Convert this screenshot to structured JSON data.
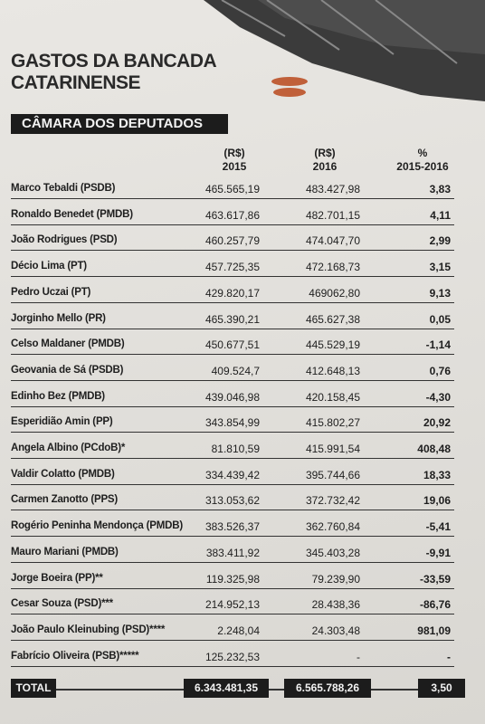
{
  "header": {
    "title": [
      "GASTOS DA BANCADA",
      "CATARINENSE"
    ],
    "section": "CÂMARA DOS DEPUTADOS"
  },
  "table": {
    "columns": [
      [
        "(R$)",
        "2015"
      ],
      [
        "(R$)",
        "2016"
      ],
      [
        "%",
        "2015-2016"
      ]
    ],
    "rows": [
      [
        "Marco Tebaldi (PSDB)",
        "465.565,19",
        "483.427,98",
        "3,83"
      ],
      [
        "Ronaldo Benedet (PMDB)",
        "463.617,86",
        "482.701,15",
        "4,11"
      ],
      [
        "João Rodrigues (PSD)",
        "460.257,79",
        "474.047,70",
        "2,99"
      ],
      [
        "Décio Lima (PT)",
        "457.725,35",
        "472.168,73",
        "3,15"
      ],
      [
        "Pedro Uczai (PT)",
        "429.820,17",
        "469062,80",
        "9,13"
      ],
      [
        "Jorginho Mello (PR)",
        "465.390,21",
        "465.627,38",
        "0,05"
      ],
      [
        "Celso Maldaner (PMDB)",
        "450.677,51",
        "445.529,19",
        "-1,14"
      ],
      [
        "Geovania de Sá (PSDB)",
        "409.524,7",
        "412.648,13",
        "0,76"
      ],
      [
        "Edinho Bez (PMDB)",
        "439.046,98",
        "420.158,45",
        "-4,30"
      ],
      [
        "Esperidião Amin (PP)",
        "343.854,99",
        "415.802,27",
        "20,92"
      ],
      [
        "Angela Albino (PCdoB)*",
        "81.810,59",
        "415.991,54",
        "408,48"
      ],
      [
        "Valdir Colatto (PMDB)",
        "334.439,42",
        "395.744,66",
        "18,33"
      ],
      [
        "Carmen Zanotto (PPS)",
        "313.053,62",
        "372.732,42",
        "19,06"
      ],
      [
        "Rogério Peninha Mendonça (PMDB)",
        "383.526,37",
        "362.760,84",
        "-5,41"
      ],
      [
        "Mauro Mariani (PMDB)",
        "383.411,92",
        "345.403,28",
        "-9,91"
      ],
      [
        "Jorge Boeira (PP)**",
        "119.325,98",
        "79.239,90",
        "-33,59"
      ],
      [
        "Cesar Souza (PSD)***",
        "214.952,13",
        "28.438,36",
        "-86,76"
      ],
      [
        "João Paulo Kleinubing (PSD)****",
        "2.248,04",
        "24.303,48",
        "981,09"
      ],
      [
        "Fabrício Oliveira (PSB)*****",
        "125.232,53",
        "-",
        "-"
      ]
    ],
    "total": [
      "TOTAL",
      "6.343.481,35",
      "6.565.788,26",
      "3,50"
    ]
  }
}
